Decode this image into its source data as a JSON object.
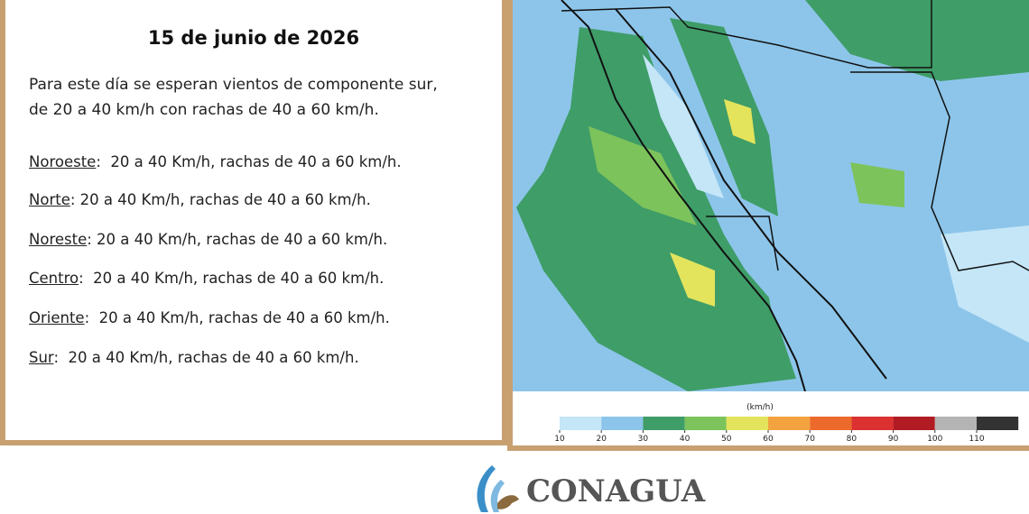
{
  "header": {
    "date": "15 de junio de 2026"
  },
  "intro": [
    "Para este día se esperan vientos de componente sur,",
    "de 20 a 40 km/h con rachas de 40 a 60 km/h."
  ],
  "regions": [
    {
      "name": "Noroeste",
      "text": ":  20 a 40 Km/h, rachas de 40 a 60 km/h."
    },
    {
      "name": "Norte",
      "text": ": 20 a 40 Km/h, rachas de 40 a 60 km/h."
    },
    {
      "name": "Noreste",
      "text": ": 20 a 40 Km/h, rachas de 40 a 60 km/h."
    },
    {
      "name": "Centro",
      "text": ":  20 a 40 Km/h, rachas de 40 a 60 km/h."
    },
    {
      "name": "Oriente",
      "text": ":  20 a 40 Km/h, rachas de 40 a 60 km/h."
    },
    {
      "name": "Sur",
      "text": ":  20 a 40 Km/h, rachas de 40 a 60 km/h."
    }
  ],
  "legend": {
    "unit": "(km/h)",
    "ticks": [
      10,
      20,
      30,
      40,
      50,
      60,
      70,
      80,
      90,
      100,
      110
    ],
    "colors": [
      "#ffffff",
      "#c4e6f7",
      "#8dc5ea",
      "#3f9d68",
      "#7dc35b",
      "#e4e45c",
      "#f2a33f",
      "#ec6a2b",
      "#db3131",
      "#b11c24",
      "#b4b4b4",
      "#333333"
    ]
  },
  "footer": {
    "logo": "CONAGUA"
  }
}
